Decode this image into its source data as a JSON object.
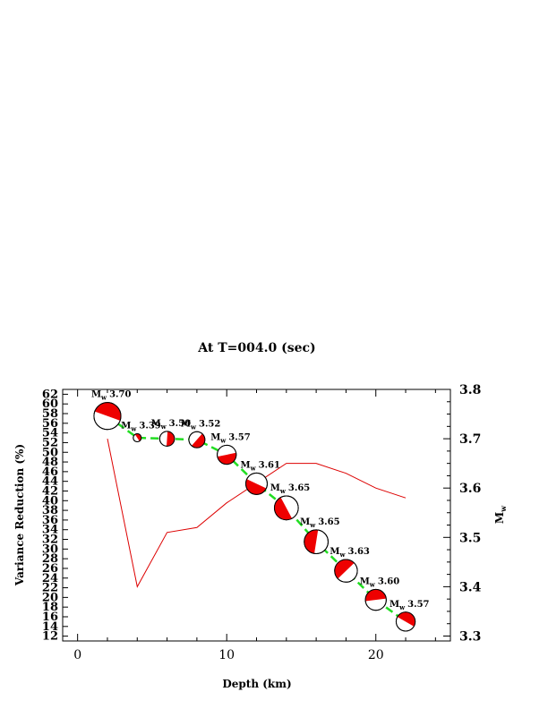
{
  "chart_data": {
    "type": "scatter",
    "title": "At T=004.0 (sec)",
    "xlabel": "Depth (km)",
    "ylabel_left": "Variance Reduction (%)",
    "ylabel_right": "M",
    "ylabel_right_sub": "w",
    "mw_prefix": "M",
    "mw_sub": "w",
    "xlim": [
      -1,
      25
    ],
    "xticks": [
      0,
      10,
      20
    ],
    "ylim_left": [
      11,
      63
    ],
    "yticks_left": [
      12,
      14,
      16,
      18,
      20,
      22,
      24,
      26,
      28,
      30,
      32,
      34,
      36,
      38,
      40,
      42,
      44,
      46,
      48,
      50,
      52,
      54,
      56,
      58,
      60,
      62
    ],
    "ylim_right": [
      3.29,
      3.8
    ],
    "yticks_right": [
      3.3,
      3.4,
      3.5,
      3.6,
      3.7,
      3.8
    ],
    "ytick_labels_right": [
      "3.3",
      "3.4",
      "3.5",
      "3.6",
      "3.7",
      "3.8"
    ],
    "series": [
      {
        "name": "Mw",
        "style": "green dashed",
        "color": "#22dd22",
        "x": [
          2,
          4,
          6,
          8,
          10,
          12,
          14,
          16,
          18,
          20,
          22
        ],
        "y": [
          3.7,
          3.39,
          3.5,
          3.52,
          3.57,
          3.61,
          3.65,
          3.65,
          3.63,
          3.6,
          3.57
        ],
        "labels": [
          "3.70",
          "3.39",
          "3.50",
          "3.52",
          "3.57",
          "3.61",
          "3.65",
          "3.65",
          "3.63",
          "3.60",
          "3.57"
        ],
        "vr": [
          57.5,
          53,
          52.8,
          52.6,
          49.5,
          43.5,
          38.5,
          31.5,
          25.5,
          19.5,
          15
        ]
      },
      {
        "name": "Variance Reduction",
        "style": "red solid",
        "color": "#dd0000",
        "x": [
          2,
          4,
          6,
          8,
          10,
          12,
          14,
          16,
          18,
          20,
          22
        ],
        "y": [
          3.7,
          3.4,
          3.51,
          3.52,
          3.57,
          3.61,
          3.65,
          3.65,
          3.63,
          3.6,
          3.58
        ]
      }
    ],
    "beachball_color": "#ee0000"
  }
}
